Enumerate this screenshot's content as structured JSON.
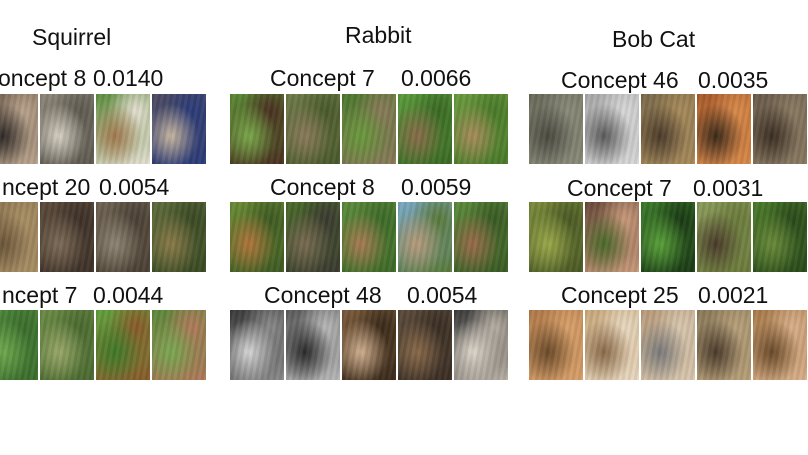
{
  "columns": [
    {
      "title": "Squirrel",
      "rows": [
        {
          "concept": "oncept 8",
          "score": "0.0140",
          "tiles": [
            [
              "#6d5a4a",
              "#2f2a28",
              "#b9a48c"
            ],
            [
              "#8c8578",
              "#d6d0c4",
              "#5e5a50"
            ],
            [
              "#5e8d3e",
              "#a37a4f",
              "#e6e0d2"
            ],
            [
              "#4c4a62",
              "#c7b7a1",
              "#2b3c7a"
            ]
          ]
        },
        {
          "concept": "ncept 20",
          "score": "0.0054",
          "tiles": [
            [
              "#8a7350",
              "#6b5639",
              "#a88e64"
            ],
            [
              "#5a4a3a",
              "#7e6c58",
              "#3e3128"
            ],
            [
              "#6e6252",
              "#8f8574",
              "#4a4034"
            ],
            [
              "#5d6a3a",
              "#8a7a48",
              "#3a4a24"
            ]
          ]
        },
        {
          "concept": "ncept 7",
          "score": "0.0044",
          "tiles": [
            [
              "#4f8a3c",
              "#6fa84e",
              "#3b6e2c"
            ],
            [
              "#6a8a44",
              "#9aa86a",
              "#4a6a30"
            ],
            [
              "#5fa03c",
              "#3f7a28",
              "#8a5a2a"
            ],
            [
              "#5a8a3a",
              "#7aa852",
              "#b07a5a"
            ]
          ]
        }
      ]
    },
    {
      "title": "Rabbit",
      "rows": [
        {
          "concept": "Concept 7",
          "score": "0.0066",
          "tiles": [
            [
              "#5a8a34",
              "#7aa84a",
              "#4a3020"
            ],
            [
              "#6e7a4a",
              "#8a7a5a",
              "#4a5a2a"
            ],
            [
              "#4a7a2c",
              "#6a9a3c",
              "#8a7a5a"
            ],
            [
              "#5a9a3a",
              "#8a6a4a",
              "#3a6a24"
            ],
            [
              "#6a9a3e",
              "#a88a5a",
              "#4a7a2a"
            ]
          ]
        },
        {
          "concept": "Concept 8",
          "score": "0.0059",
          "tiles": [
            [
              "#6a8a34",
              "#b0743a",
              "#3e5a22"
            ],
            [
              "#4a6a2a",
              "#7a6a52",
              "#3a3a30"
            ],
            [
              "#5a8a3a",
              "#a87a52",
              "#3e6a28"
            ],
            [
              "#7aa8c4",
              "#b89a7a",
              "#5a7a3a"
            ],
            [
              "#5a8a3a",
              "#9a6a4a",
              "#3a5a24"
            ]
          ]
        },
        {
          "concept": "Concept 48",
          "score": "0.0054",
          "tiles": [
            [
              "#3a3a3a",
              "#d8d8d8",
              "#8a8a8a"
            ],
            [
              "#5a5a5a",
              "#2a2a2a",
              "#b8b8b8"
            ],
            [
              "#7a5a3a",
              "#d0b090",
              "#3a2a1a"
            ],
            [
              "#5a4a3a",
              "#8a6a4a",
              "#3a2e24"
            ],
            [
              "#3a3a3a",
              "#e0d8cc",
              "#b8b0a4"
            ]
          ]
        }
      ]
    },
    {
      "title": "Bob Cat",
      "rows": [
        {
          "concept": "Concept 46",
          "score": "0.0035",
          "tiles": [
            [
              "#6a6a5a",
              "#4a4a40",
              "#8a8a7a"
            ],
            [
              "#a8a8a8",
              "#5a5a5a",
              "#d8d8d8"
            ],
            [
              "#7a6a4a",
              "#4a3a2a",
              "#a88a5a"
            ],
            [
              "#a85a2a",
              "#3a2a1a",
              "#d88a4a"
            ],
            [
              "#6a5a4a",
              "#3a2e22",
              "#8a7a62"
            ]
          ]
        },
        {
          "concept": "Concept 7",
          "score": "0.0031",
          "tiles": [
            [
              "#7a8a3a",
              "#9aa84a",
              "#4a5a24"
            ],
            [
              "#6a4a3a",
              "#4a6a2a",
              "#c89a7a"
            ],
            [
              "#3a7a2a",
              "#5aa03a",
              "#1a3a14"
            ],
            [
              "#8a9a5a",
              "#4a3a2a",
              "#6a7a3a"
            ],
            [
              "#4a7a2a",
              "#6a8a3a",
              "#2a4a1a"
            ]
          ]
        },
        {
          "concept": "Concept 25",
          "score": "0.0021",
          "tiles": [
            [
              "#b07a4a",
              "#6a4a2a",
              "#d8a06a"
            ],
            [
              "#c8a87a",
              "#8a6a4a",
              "#e8d8c0"
            ],
            [
              "#b89a7a",
              "#7a7a7a",
              "#d8c8b0"
            ],
            [
              "#8a7a5a",
              "#4a3a2a",
              "#b8a07a"
            ],
            [
              "#a87a4a",
              "#6a4a2a",
              "#d8b08a"
            ]
          ]
        }
      ]
    }
  ]
}
